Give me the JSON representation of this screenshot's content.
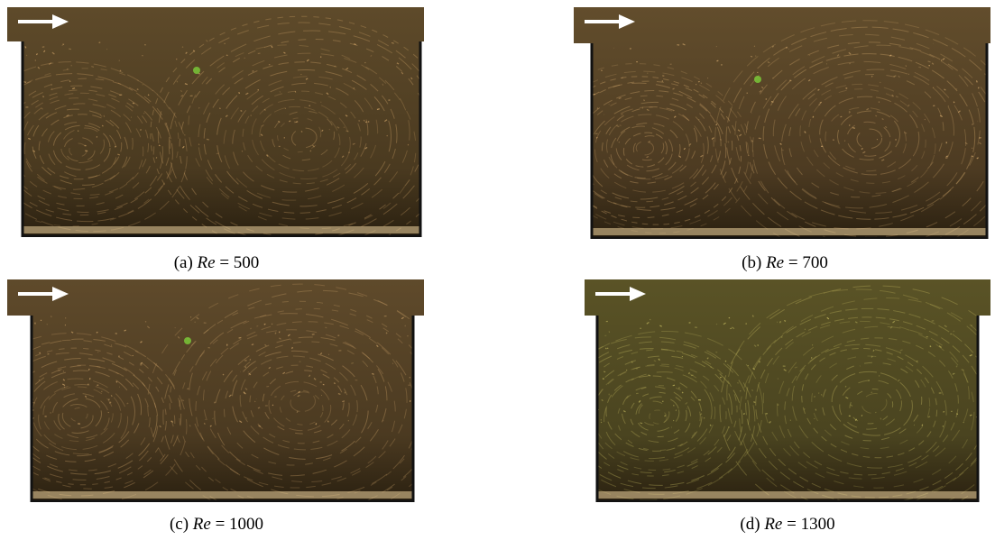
{
  "panels": [
    {
      "label": "(a)",
      "symbol": "Re",
      "value": "= 500"
    },
    {
      "label": "(b)",
      "symbol": "Re",
      "value": "= 700"
    },
    {
      "label": "(c)",
      "symbol": "Re",
      "value": "= 1000"
    },
    {
      "label": "(d)",
      "symbol": "Re",
      "value": "= 1300"
    }
  ]
}
